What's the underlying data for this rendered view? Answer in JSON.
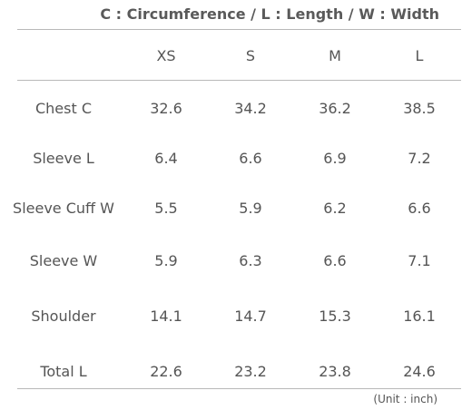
{
  "legend": "C : Circumference / L : Length / W : Width",
  "columns": [
    "XS",
    "S",
    "M",
    "L"
  ],
  "rows": [
    {
      "label": "Chest C",
      "values": [
        "32.6",
        "34.2",
        "36.2",
        "38.5"
      ]
    },
    {
      "label": "Sleeve L",
      "values": [
        "6.4",
        "6.6",
        "6.9",
        "7.2"
      ]
    },
    {
      "label": "Sleeve Cuff W",
      "values": [
        "5.5",
        "5.9",
        "6.2",
        "6.6"
      ]
    },
    {
      "label": "Sleeve W",
      "values": [
        "5.9",
        "6.3",
        "6.6",
        "7.1"
      ]
    },
    {
      "label": "Shoulder",
      "values": [
        "14.1",
        "14.7",
        "15.3",
        "16.1"
      ]
    },
    {
      "label": "Total L",
      "values": [
        "22.6",
        "23.2",
        "23.8",
        "24.6"
      ]
    }
  ],
  "unit_note": "(Unit : inch)",
  "colors": {
    "text": "#555555",
    "rule": "#b9b9b9",
    "background": "#ffffff"
  }
}
